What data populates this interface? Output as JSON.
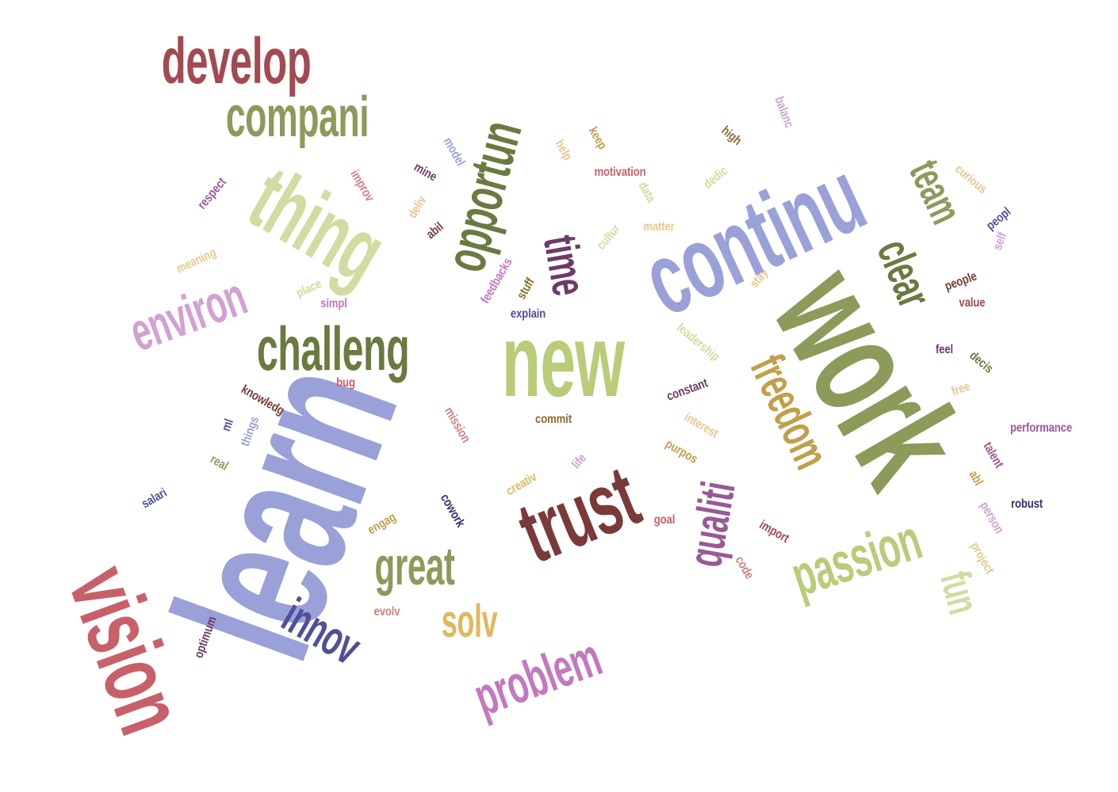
{
  "words": [
    {
      "text": "learn",
      "color": "#9aa0d8"
    },
    {
      "text": "work",
      "color": "#8c9a5a"
    },
    {
      "text": "new",
      "color": "#b9cc78"
    },
    {
      "text": "continu",
      "color": "#9aa0d8"
    },
    {
      "text": "trust",
      "color": "#7a3a3a"
    },
    {
      "text": "thing",
      "color": "#d2dba0"
    },
    {
      "text": "vision",
      "color": "#c8606a"
    },
    {
      "text": "develop",
      "color": "#a34a50"
    },
    {
      "text": "compani",
      "color": "#8c9a5a"
    },
    {
      "text": "challeng",
      "color": "#6a7a40"
    },
    {
      "text": "opportun",
      "color": "#6a7a40"
    },
    {
      "text": "passion",
      "color": "#b9cc78"
    },
    {
      "text": "freedom",
      "color": "#c0a04a"
    },
    {
      "text": "qualiti",
      "color": "#9a5898"
    },
    {
      "text": "environ",
      "color": "#d2a0d2"
    },
    {
      "text": "problem",
      "color": "#c478c0"
    },
    {
      "text": "great",
      "color": "#8c9a5a"
    },
    {
      "text": "innov",
      "color": "#505098"
    },
    {
      "text": "time",
      "color": "#6e3a6a"
    },
    {
      "text": "clear",
      "color": "#6a7a40"
    },
    {
      "text": "team",
      "color": "#8c9a5a"
    },
    {
      "text": "fun",
      "color": "#d2dba0"
    },
    {
      "text": "solv",
      "color": "#e0b860"
    },
    {
      "text": "performance",
      "color": "#9a5898"
    },
    {
      "text": "motivation",
      "color": "#c8606a"
    },
    {
      "text": "robust",
      "color": "#303070"
    },
    {
      "text": "commit",
      "color": "#8c6a30"
    },
    {
      "text": "explain",
      "color": "#505098"
    },
    {
      "text": "value",
      "color": "#a34a50"
    },
    {
      "text": "people",
      "color": "#7a3a3a"
    },
    {
      "text": "feel",
      "color": "#6e3a6a"
    },
    {
      "text": "matter",
      "color": "#e8c890"
    },
    {
      "text": "goal",
      "color": "#c8606a"
    },
    {
      "text": "bug",
      "color": "#c8606a"
    },
    {
      "text": "simpl",
      "color": "#c478c0"
    },
    {
      "text": "constant",
      "color": "#6e3a6a"
    },
    {
      "text": "high",
      "color": "#8c6a30"
    },
    {
      "text": "balanc",
      "color": "#d2a0d2"
    },
    {
      "text": "keep",
      "color": "#c0a04a"
    },
    {
      "text": "help",
      "color": "#e8c890"
    },
    {
      "text": "model",
      "color": "#9aa0d8"
    },
    {
      "text": "mine",
      "color": "#6e3a6a"
    },
    {
      "text": "improv",
      "color": "#d08080"
    },
    {
      "text": "respect",
      "color": "#9a5898"
    },
    {
      "text": "meaning",
      "color": "#e8c890"
    },
    {
      "text": "place",
      "color": "#d2dba0"
    },
    {
      "text": "knowledg",
      "color": "#7a3a3a"
    },
    {
      "text": "ml",
      "color": "#505098"
    },
    {
      "text": "things",
      "color": "#9aa0d8"
    },
    {
      "text": "real",
      "color": "#8c9a5a"
    },
    {
      "text": "salari",
      "color": "#505098"
    },
    {
      "text": "mission",
      "color": "#d08080"
    },
    {
      "text": "interest",
      "color": "#e8c890"
    },
    {
      "text": "purpos",
      "color": "#c0a04a"
    },
    {
      "text": "life",
      "color": "#d2a0d2"
    },
    {
      "text": "creativ",
      "color": "#e0b860"
    },
    {
      "text": "cowork",
      "color": "#303070"
    },
    {
      "text": "engag",
      "color": "#c0a04a"
    },
    {
      "text": "evolv",
      "color": "#d08080"
    },
    {
      "text": "optimum",
      "color": "#6e3a6a"
    },
    {
      "text": "code",
      "color": "#d08080"
    },
    {
      "text": "import",
      "color": "#a34a50"
    },
    {
      "text": "project",
      "color": "#e8c890"
    },
    {
      "text": "person",
      "color": "#d2a0d2"
    },
    {
      "text": "abl",
      "color": "#c0a04a"
    },
    {
      "text": "talent",
      "color": "#9a5898"
    },
    {
      "text": "free",
      "color": "#e8c890"
    },
    {
      "text": "decis",
      "color": "#6a7a40"
    },
    {
      "text": "leadership",
      "color": "#d2dba0"
    },
    {
      "text": "stay",
      "color": "#e8c890"
    },
    {
      "text": "cultur",
      "color": "#d2dba0"
    },
    {
      "text": "data",
      "color": "#d2dba0"
    },
    {
      "text": "dedic",
      "color": "#d2dba0"
    },
    {
      "text": "curious",
      "color": "#e8c890"
    },
    {
      "text": "peopl",
      "color": "#505098"
    },
    {
      "text": "self",
      "color": "#d2a0d2"
    },
    {
      "text": "abil",
      "color": "#7a3a3a"
    },
    {
      "text": "deliv",
      "color": "#e8c890"
    },
    {
      "text": "feedbacks",
      "color": "#c478c0"
    },
    {
      "text": "stuff",
      "color": "#8c6a30"
    }
  ]
}
